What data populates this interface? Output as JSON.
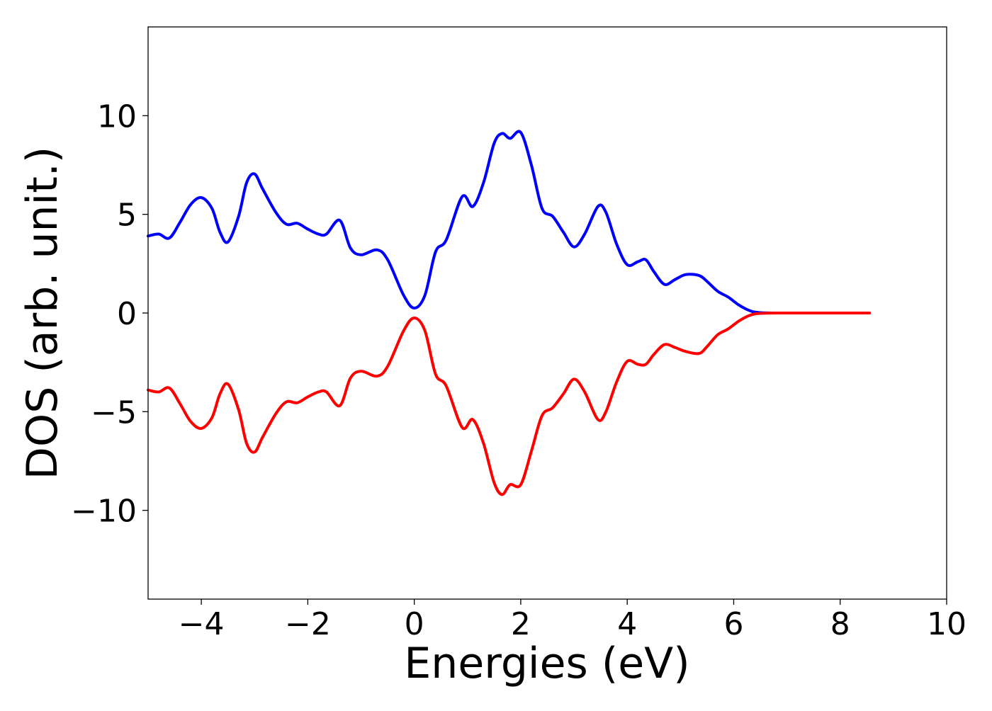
{
  "chart_data": {
    "type": "line",
    "title": "",
    "xlabel": "Energies (eV)",
    "ylabel": "DOS (arb. unit.)",
    "xlim": [
      -5,
      10
    ],
    "ylim": [
      -14.5,
      14.5
    ],
    "xticks": [
      -4,
      -2,
      0,
      2,
      4,
      6,
      8,
      10
    ],
    "yticks": [
      -10,
      -5,
      0,
      5,
      10
    ],
    "xtick_labels": [
      "−4",
      "−2",
      "0",
      "2",
      "4",
      "6",
      "8",
      "10"
    ],
    "ytick_labels": [
      "−10",
      "−5",
      "0",
      "5",
      "10"
    ],
    "grid": false,
    "legend": false,
    "series": [
      {
        "color": "#0000ff",
        "points": [
          [
            -5.0,
            3.9
          ],
          [
            -4.8,
            4.0
          ],
          [
            -4.6,
            3.8
          ],
          [
            -4.4,
            4.6
          ],
          [
            -4.2,
            5.5
          ],
          [
            -4.0,
            5.85
          ],
          [
            -3.8,
            5.3
          ],
          [
            -3.65,
            4.1
          ],
          [
            -3.5,
            3.6
          ],
          [
            -3.3,
            4.9
          ],
          [
            -3.15,
            6.6
          ],
          [
            -3.0,
            7.05
          ],
          [
            -2.85,
            6.3
          ],
          [
            -2.6,
            5.1
          ],
          [
            -2.4,
            4.5
          ],
          [
            -2.2,
            4.55
          ],
          [
            -2.0,
            4.25
          ],
          [
            -1.8,
            4.0
          ],
          [
            -1.65,
            4.0
          ],
          [
            -1.4,
            4.7
          ],
          [
            -1.2,
            3.3
          ],
          [
            -1.0,
            2.95
          ],
          [
            -0.7,
            3.2
          ],
          [
            -0.5,
            2.7
          ],
          [
            -0.2,
            0.9
          ],
          [
            0.0,
            0.25
          ],
          [
            0.2,
            0.9
          ],
          [
            0.4,
            3.1
          ],
          [
            0.6,
            3.7
          ],
          [
            0.9,
            5.9
          ],
          [
            1.1,
            5.4
          ],
          [
            1.3,
            6.6
          ],
          [
            1.5,
            8.6
          ],
          [
            1.65,
            9.1
          ],
          [
            1.8,
            8.85
          ],
          [
            2.0,
            9.15
          ],
          [
            2.2,
            7.5
          ],
          [
            2.4,
            5.3
          ],
          [
            2.6,
            4.9
          ],
          [
            2.8,
            4.1
          ],
          [
            3.0,
            3.35
          ],
          [
            3.2,
            4.0
          ],
          [
            3.45,
            5.4
          ],
          [
            3.6,
            5.1
          ],
          [
            3.8,
            3.5
          ],
          [
            4.0,
            2.45
          ],
          [
            4.2,
            2.6
          ],
          [
            4.35,
            2.7
          ],
          [
            4.5,
            2.1
          ],
          [
            4.7,
            1.45
          ],
          [
            4.9,
            1.7
          ],
          [
            5.1,
            1.95
          ],
          [
            5.35,
            1.9
          ],
          [
            5.5,
            1.6
          ],
          [
            5.7,
            1.1
          ],
          [
            5.9,
            0.8
          ],
          [
            6.1,
            0.4
          ],
          [
            6.3,
            0.12
          ],
          [
            6.5,
            0.02
          ],
          [
            7.0,
            0.0
          ],
          [
            8.0,
            0.0
          ],
          [
            8.55,
            0.0
          ]
        ]
      },
      {
        "color": "#ff0000",
        "points": [
          [
            -5.0,
            -3.9
          ],
          [
            -4.8,
            -4.0
          ],
          [
            -4.6,
            -3.8
          ],
          [
            -4.4,
            -4.6
          ],
          [
            -4.2,
            -5.5
          ],
          [
            -4.0,
            -5.85
          ],
          [
            -3.8,
            -5.3
          ],
          [
            -3.65,
            -4.1
          ],
          [
            -3.5,
            -3.6
          ],
          [
            -3.3,
            -4.9
          ],
          [
            -3.15,
            -6.6
          ],
          [
            -3.0,
            -7.05
          ],
          [
            -2.85,
            -6.3
          ],
          [
            -2.6,
            -5.1
          ],
          [
            -2.4,
            -4.5
          ],
          [
            -2.2,
            -4.55
          ],
          [
            -2.0,
            -4.25
          ],
          [
            -1.8,
            -4.0
          ],
          [
            -1.65,
            -4.0
          ],
          [
            -1.4,
            -4.7
          ],
          [
            -1.2,
            -3.3
          ],
          [
            -1.0,
            -2.95
          ],
          [
            -0.7,
            -3.2
          ],
          [
            -0.5,
            -2.7
          ],
          [
            -0.2,
            -0.9
          ],
          [
            0.0,
            -0.25
          ],
          [
            0.2,
            -0.9
          ],
          [
            0.4,
            -3.1
          ],
          [
            0.6,
            -3.7
          ],
          [
            0.9,
            -5.8
          ],
          [
            1.1,
            -5.4
          ],
          [
            1.3,
            -6.6
          ],
          [
            1.5,
            -8.6
          ],
          [
            1.65,
            -9.2
          ],
          [
            1.8,
            -8.7
          ],
          [
            2.0,
            -8.7
          ],
          [
            2.2,
            -7.0
          ],
          [
            2.4,
            -5.2
          ],
          [
            2.6,
            -4.8
          ],
          [
            2.8,
            -4.1
          ],
          [
            3.0,
            -3.35
          ],
          [
            3.2,
            -4.0
          ],
          [
            3.45,
            -5.4
          ],
          [
            3.6,
            -5.0
          ],
          [
            3.8,
            -3.5
          ],
          [
            4.0,
            -2.45
          ],
          [
            4.2,
            -2.6
          ],
          [
            4.35,
            -2.6
          ],
          [
            4.5,
            -2.1
          ],
          [
            4.7,
            -1.6
          ],
          [
            4.9,
            -1.75
          ],
          [
            5.1,
            -1.95
          ],
          [
            5.35,
            -2.05
          ],
          [
            5.5,
            -1.7
          ],
          [
            5.7,
            -1.1
          ],
          [
            5.9,
            -0.8
          ],
          [
            6.1,
            -0.4
          ],
          [
            6.3,
            -0.12
          ],
          [
            6.5,
            -0.02
          ],
          [
            7.0,
            0.0
          ],
          [
            8.0,
            0.0
          ],
          [
            8.55,
            0.0
          ]
        ]
      }
    ]
  }
}
